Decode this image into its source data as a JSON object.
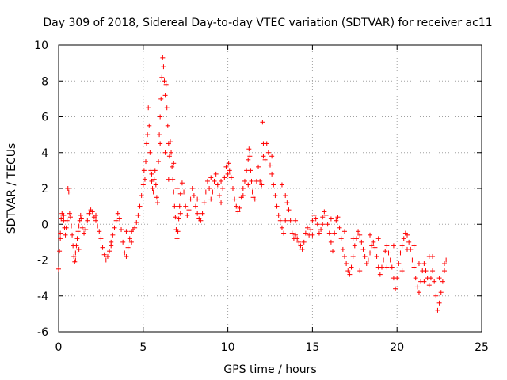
{
  "chart_data": {
    "type": "scatter",
    "title": "Day 309 of 2018, Sidereal Day-to-day VTEC variation (SDTVAR) for receiver ac11",
    "xlabel": "GPS time / hours",
    "ylabel": "SDTVAR / TECUs",
    "xlim": [
      0,
      25
    ],
    "ylim": [
      -6,
      10
    ],
    "x_ticks": [
      0,
      5,
      10,
      15,
      20,
      25
    ],
    "y_ticks": [
      -6,
      -4,
      -2,
      0,
      2,
      4,
      6,
      8,
      10
    ],
    "grid": true,
    "marker": "+",
    "series": [
      {
        "name": "SDTVAR",
        "color": "#ff0000",
        "points": [
          [
            0.0,
            -2.5
          ],
          [
            0.05,
            -1.5
          ],
          [
            0.1,
            -0.5
          ],
          [
            0.15,
            0.3
          ],
          [
            0.2,
            0.6
          ],
          [
            0.25,
            0.5
          ],
          [
            0.3,
            0.2
          ],
          [
            0.35,
            -0.2
          ],
          [
            0.4,
            -0.6
          ],
          [
            0.45,
            -0.2
          ],
          [
            0.5,
            0.2
          ],
          [
            0.55,
            2.0
          ],
          [
            0.6,
            1.8
          ],
          [
            0.65,
            0.6
          ],
          [
            0.7,
            0.4
          ],
          [
            0.75,
            -0.1
          ],
          [
            0.8,
            -0.6
          ],
          [
            0.85,
            -1.2
          ],
          [
            0.9,
            -1.8
          ],
          [
            0.95,
            -2.1
          ],
          [
            1.0,
            -1.6
          ],
          [
            1.05,
            -1.2
          ],
          [
            1.1,
            -0.8
          ],
          [
            1.15,
            -0.4
          ],
          [
            1.2,
            -0.1
          ],
          [
            1.25,
            0.2
          ],
          [
            1.3,
            0.5
          ],
          [
            1.35,
            0.3
          ],
          [
            1.4,
            -0.2
          ],
          [
            1.5,
            -0.5
          ],
          [
            1.6,
            -0.3
          ],
          [
            1.7,
            0.2
          ],
          [
            1.8,
            0.6
          ],
          [
            1.9,
            0.8
          ],
          [
            2.0,
            0.7
          ],
          [
            2.1,
            0.4
          ],
          [
            2.2,
            0.2
          ],
          [
            2.3,
            -0.1
          ],
          [
            2.4,
            -0.4
          ],
          [
            2.5,
            -0.8
          ],
          [
            2.6,
            -1.3
          ],
          [
            2.7,
            -1.7
          ],
          [
            2.8,
            -2.0
          ],
          [
            2.9,
            -1.8
          ],
          [
            3.0,
            -1.5
          ],
          [
            3.1,
            -1.0
          ],
          [
            3.2,
            -0.6
          ],
          [
            3.3,
            -0.2
          ],
          [
            3.4,
            0.2
          ],
          [
            3.5,
            0.6
          ],
          [
            3.6,
            0.3
          ],
          [
            3.7,
            -0.3
          ],
          [
            3.8,
            -1.0
          ],
          [
            3.9,
            -1.6
          ],
          [
            4.0,
            -1.8
          ],
          [
            4.1,
            -1.3
          ],
          [
            4.2,
            -0.8
          ],
          [
            4.3,
            -0.4
          ],
          [
            4.4,
            -0.3
          ],
          [
            4.5,
            -0.2
          ],
          [
            4.6,
            0.1
          ],
          [
            4.7,
            0.5
          ],
          [
            4.8,
            1.0
          ],
          [
            4.9,
            1.6
          ],
          [
            5.0,
            2.2
          ],
          [
            5.05,
            3.0
          ],
          [
            5.1,
            2.5
          ],
          [
            5.15,
            3.5
          ],
          [
            5.2,
            4.5
          ],
          [
            5.25,
            5.0
          ],
          [
            5.3,
            6.5
          ],
          [
            5.35,
            5.5
          ],
          [
            5.4,
            4.0
          ],
          [
            5.45,
            3.0
          ],
          [
            5.5,
            2.4
          ],
          [
            5.55,
            2.0
          ],
          [
            5.6,
            1.8
          ],
          [
            5.65,
            2.5
          ],
          [
            5.7,
            3.0
          ],
          [
            5.75,
            2.2
          ],
          [
            5.8,
            1.5
          ],
          [
            5.85,
            1.2
          ],
          [
            5.9,
            3.5
          ],
          [
            5.95,
            5.0
          ],
          [
            6.0,
            6.0
          ],
          [
            6.05,
            7.0
          ],
          [
            6.1,
            8.2
          ],
          [
            6.15,
            9.3
          ],
          [
            6.2,
            8.8
          ],
          [
            6.25,
            8.0
          ],
          [
            6.3,
            7.2
          ],
          [
            6.35,
            7.8
          ],
          [
            6.4,
            6.5
          ],
          [
            6.45,
            5.5
          ],
          [
            6.5,
            4.5
          ],
          [
            6.55,
            3.8
          ],
          [
            6.6,
            4.6
          ],
          [
            6.65,
            4.0
          ],
          [
            6.7,
            3.2
          ],
          [
            6.75,
            2.5
          ],
          [
            6.8,
            1.8
          ],
          [
            6.85,
            1.0
          ],
          [
            6.9,
            0.4
          ],
          [
            6.95,
            -0.3
          ],
          [
            7.0,
            -0.8
          ],
          [
            7.05,
            -0.4
          ],
          [
            7.1,
            0.3
          ],
          [
            7.15,
            1.0
          ],
          [
            7.2,
            1.7
          ],
          [
            7.3,
            2.3
          ],
          [
            7.4,
            1.8
          ],
          [
            7.5,
            1.0
          ],
          [
            7.6,
            0.5
          ],
          [
            7.7,
            0.8
          ],
          [
            7.8,
            1.4
          ],
          [
            7.9,
            2.0
          ],
          [
            8.0,
            1.6
          ],
          [
            8.1,
            1.0
          ],
          [
            8.2,
            0.6
          ],
          [
            8.3,
            0.3
          ],
          [
            8.4,
            0.2
          ],
          [
            8.5,
            0.6
          ],
          [
            8.6,
            1.2
          ],
          [
            8.7,
            1.8
          ],
          [
            8.8,
            2.4
          ],
          [
            8.9,
            2.0
          ],
          [
            9.0,
            1.4
          ],
          [
            9.1,
            1.8
          ],
          [
            9.2,
            2.4
          ],
          [
            9.3,
            2.8
          ],
          [
            9.4,
            2.2
          ],
          [
            9.5,
            1.6
          ],
          [
            9.6,
            1.2
          ],
          [
            9.7,
            2.0
          ],
          [
            9.8,
            2.6
          ],
          [
            9.9,
            3.2
          ],
          [
            10.0,
            2.8
          ],
          [
            10.05,
            3.4
          ],
          [
            10.1,
            3.0
          ],
          [
            10.2,
            2.6
          ],
          [
            10.3,
            2.0
          ],
          [
            10.4,
            1.4
          ],
          [
            10.5,
            1.0
          ],
          [
            10.6,
            0.7
          ],
          [
            10.7,
            0.9
          ],
          [
            10.8,
            1.5
          ],
          [
            10.9,
            2.0
          ],
          [
            11.0,
            2.4
          ],
          [
            11.1,
            3.0
          ],
          [
            11.2,
            3.6
          ],
          [
            11.25,
            4.2
          ],
          [
            11.3,
            3.8
          ],
          [
            11.35,
            3.0
          ],
          [
            11.4,
            2.4
          ],
          [
            11.45,
            1.8
          ],
          [
            11.5,
            1.5
          ],
          [
            11.6,
            1.4
          ],
          [
            11.7,
            2.4
          ],
          [
            11.8,
            3.2
          ],
          [
            11.9,
            2.4
          ],
          [
            12.0,
            2.2
          ],
          [
            12.05,
            5.7
          ],
          [
            12.1,
            4.5
          ],
          [
            12.2,
            3.6
          ],
          [
            12.3,
            4.5
          ],
          [
            12.4,
            4.0
          ],
          [
            12.5,
            3.3
          ],
          [
            12.6,
            2.8
          ],
          [
            12.7,
            2.2
          ],
          [
            12.8,
            1.6
          ],
          [
            12.9,
            1.0
          ],
          [
            13.0,
            0.5
          ],
          [
            13.1,
            0.2
          ],
          [
            13.2,
            -0.2
          ],
          [
            13.3,
            -0.5
          ],
          [
            13.4,
            0.2
          ],
          [
            13.5,
            1.2
          ],
          [
            13.6,
            0.8
          ],
          [
            13.7,
            0.2
          ],
          [
            13.8,
            -0.5
          ],
          [
            13.9,
            -0.8
          ],
          [
            14.0,
            -0.6
          ],
          [
            14.1,
            -0.8
          ],
          [
            14.2,
            -1.0
          ],
          [
            14.3,
            -1.2
          ],
          [
            14.4,
            -1.4
          ],
          [
            14.5,
            -1.0
          ],
          [
            14.6,
            -0.5
          ],
          [
            14.7,
            -0.2
          ],
          [
            14.8,
            -0.6
          ],
          [
            14.9,
            -0.3
          ],
          [
            15.0,
            0.2
          ],
          [
            15.1,
            0.5
          ],
          [
            15.2,
            0.3
          ],
          [
            15.3,
            0.0
          ],
          [
            15.4,
            -0.5
          ],
          [
            15.5,
            -0.3
          ],
          [
            15.6,
            0.4
          ],
          [
            15.7,
            0.7
          ],
          [
            15.8,
            0.5
          ],
          [
            15.9,
            0.0
          ],
          [
            16.0,
            -0.5
          ],
          [
            16.1,
            -1.0
          ],
          [
            16.2,
            -1.5
          ],
          [
            16.3,
            -0.5
          ],
          [
            16.4,
            0.2
          ],
          [
            16.5,
            0.4
          ],
          [
            16.6,
            -0.2
          ],
          [
            16.7,
            -0.8
          ],
          [
            16.8,
            -1.4
          ],
          [
            16.9,
            -1.8
          ],
          [
            17.0,
            -2.2
          ],
          [
            17.1,
            -2.6
          ],
          [
            17.2,
            -2.8
          ],
          [
            17.3,
            -2.4
          ],
          [
            17.4,
            -1.8
          ],
          [
            17.5,
            -1.2
          ],
          [
            17.6,
            -0.8
          ],
          [
            17.7,
            -0.4
          ],
          [
            17.8,
            -0.6
          ],
          [
            17.9,
            -1.0
          ],
          [
            18.0,
            -1.4
          ],
          [
            18.1,
            -1.8
          ],
          [
            18.2,
            -2.2
          ],
          [
            18.3,
            -2.0
          ],
          [
            18.4,
            -1.6
          ],
          [
            18.5,
            -1.2
          ],
          [
            18.6,
            -1.0
          ],
          [
            18.7,
            -1.3
          ],
          [
            18.8,
            -1.8
          ],
          [
            18.9,
            -2.4
          ],
          [
            19.0,
            -2.8
          ],
          [
            19.1,
            -2.4
          ],
          [
            19.2,
            -2.0
          ],
          [
            19.3,
            -1.5
          ],
          [
            19.4,
            -1.2
          ],
          [
            19.5,
            -1.6
          ],
          [
            19.6,
            -2.0
          ],
          [
            19.7,
            -2.4
          ],
          [
            19.8,
            -3.0
          ],
          [
            19.9,
            -3.6
          ],
          [
            20.0,
            -3.0
          ],
          [
            20.1,
            -2.2
          ],
          [
            20.2,
            -1.6
          ],
          [
            20.3,
            -1.2
          ],
          [
            20.4,
            -0.8
          ],
          [
            20.5,
            -0.5
          ],
          [
            20.6,
            -0.6
          ],
          [
            20.7,
            -1.0
          ],
          [
            20.8,
            -1.4
          ],
          [
            20.9,
            -2.0
          ],
          [
            21.0,
            -2.4
          ],
          [
            21.1,
            -3.0
          ],
          [
            21.2,
            -3.5
          ],
          [
            21.3,
            -3.8
          ],
          [
            21.4,
            -3.2
          ],
          [
            21.5,
            -2.6
          ],
          [
            21.6,
            -2.2
          ],
          [
            21.7,
            -2.6
          ],
          [
            21.8,
            -3.0
          ],
          [
            21.9,
            -3.4
          ],
          [
            22.0,
            -3.0
          ],
          [
            22.1,
            -2.6
          ],
          [
            22.2,
            -3.2
          ],
          [
            22.3,
            -4.0
          ],
          [
            22.4,
            -4.8
          ],
          [
            22.5,
            -4.4
          ],
          [
            22.6,
            -3.8
          ],
          [
            22.7,
            -3.2
          ],
          [
            22.8,
            -2.6
          ],
          [
            22.9,
            -2.0
          ],
          [
            0.1,
            -0.8
          ],
          [
            0.3,
            0.5
          ],
          [
            1.0,
            -2.0
          ],
          [
            1.2,
            -1.4
          ],
          [
            2.2,
            0.5
          ],
          [
            3.1,
            -1.2
          ],
          [
            4.0,
            -0.4
          ],
          [
            4.3,
            -1.0
          ],
          [
            5.5,
            2.8
          ],
          [
            6.0,
            4.5
          ],
          [
            6.3,
            4.0
          ],
          [
            6.5,
            2.5
          ],
          [
            6.8,
            3.4
          ],
          [
            7.0,
            2.0
          ],
          [
            7.2,
            0.6
          ],
          [
            8.2,
            1.4
          ],
          [
            9.0,
            2.6
          ],
          [
            9.6,
            2.4
          ],
          [
            10.9,
            1.6
          ],
          [
            11.2,
            2.2
          ],
          [
            12.1,
            3.8
          ],
          [
            12.6,
            3.8
          ],
          [
            13.2,
            2.2
          ],
          [
            13.4,
            1.6
          ],
          [
            14.0,
            0.2
          ],
          [
            15.0,
            -0.6
          ],
          [
            15.6,
            0.0
          ],
          [
            16.1,
            0.3
          ],
          [
            16.9,
            -0.4
          ],
          [
            17.4,
            -0.8
          ],
          [
            17.8,
            -2.6
          ],
          [
            18.4,
            -0.6
          ],
          [
            18.9,
            -0.8
          ],
          [
            19.4,
            -2.4
          ],
          [
            19.8,
            -1.2
          ],
          [
            20.3,
            -2.6
          ],
          [
            20.6,
            -1.4
          ],
          [
            21.0,
            -1.2
          ],
          [
            21.3,
            -2.2
          ],
          [
            21.6,
            -3.2
          ],
          [
            21.9,
            -1.8
          ],
          [
            22.1,
            -1.8
          ],
          [
            22.5,
            -3.0
          ],
          [
            22.8,
            -2.2
          ]
        ]
      }
    ]
  }
}
